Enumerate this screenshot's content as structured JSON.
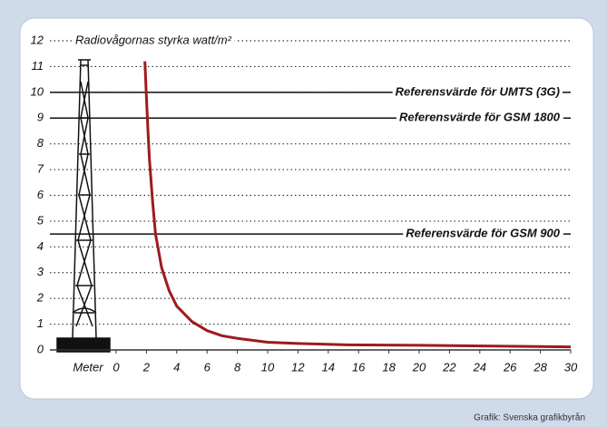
{
  "chart_data": {
    "type": "line",
    "y_label": "Radiovågornas styrka watt/m²",
    "x_label": "Meter",
    "credit": "Grafik: Svenska grafikbyrån",
    "xlim": [
      0,
      30
    ],
    "xticks": [
      0,
      2,
      4,
      6,
      8,
      10,
      12,
      14,
      16,
      18,
      20,
      22,
      24,
      26,
      28,
      30
    ],
    "ylim": [
      0,
      12
    ],
    "yticks": [
      0,
      1,
      2,
      3,
      4,
      5,
      6,
      7,
      8,
      9,
      10,
      11,
      12
    ],
    "grid": true,
    "reference_lines": [
      {
        "value": 10,
        "label": "Referensvärde för UMTS (3G)"
      },
      {
        "value": 9,
        "label": "Referensvärde för GSM 1800"
      },
      {
        "value": 4.5,
        "label": "Referensvärde för GSM 900"
      }
    ],
    "series": [
      {
        "color": "#9e1b1b",
        "x": [
          1.9,
          2,
          2.1,
          2.2,
          2.4,
          2.6,
          3,
          3.5,
          4,
          5,
          6,
          7,
          8,
          10,
          12,
          15,
          20,
          25,
          30
        ],
        "values": [
          11.2,
          9.8,
          8.5,
          7.4,
          5.8,
          4.5,
          3.2,
          2.3,
          1.7,
          1.1,
          0.75,
          0.55,
          0.45,
          0.3,
          0.25,
          0.2,
          0.18,
          0.15,
          0.12
        ]
      }
    ]
  }
}
